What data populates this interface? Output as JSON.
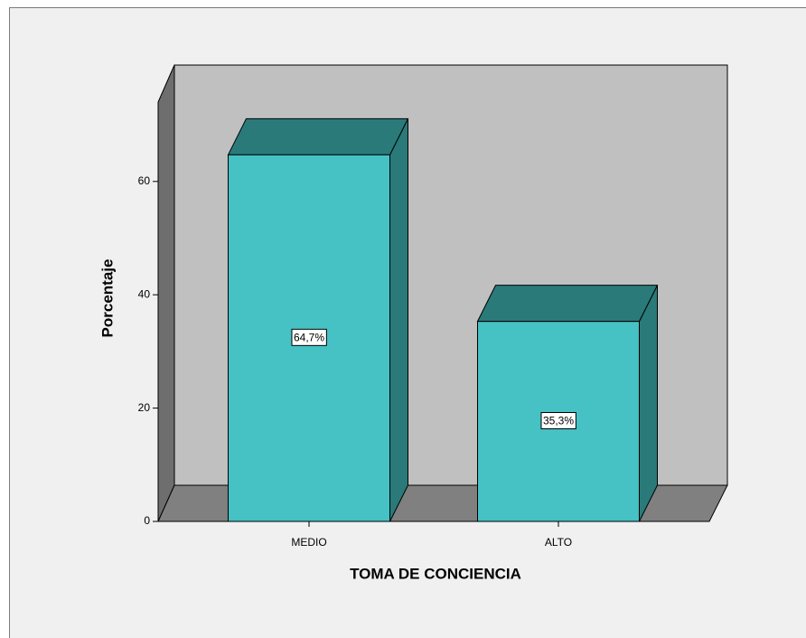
{
  "chart_data": {
    "type": "bar3d",
    "x_label": "TOMA DE CONCIENCIA",
    "y_label": "Porcentaje",
    "categories": [
      "MEDIO",
      "ALTO"
    ],
    "values": [
      64.7,
      35.3
    ],
    "value_labels": [
      "64,7%",
      "35,3%"
    ],
    "color": "#46c1c4",
    "ylim": [
      0,
      74
    ],
    "yticks": [
      0,
      20,
      40,
      60
    ],
    "grid": false
  }
}
